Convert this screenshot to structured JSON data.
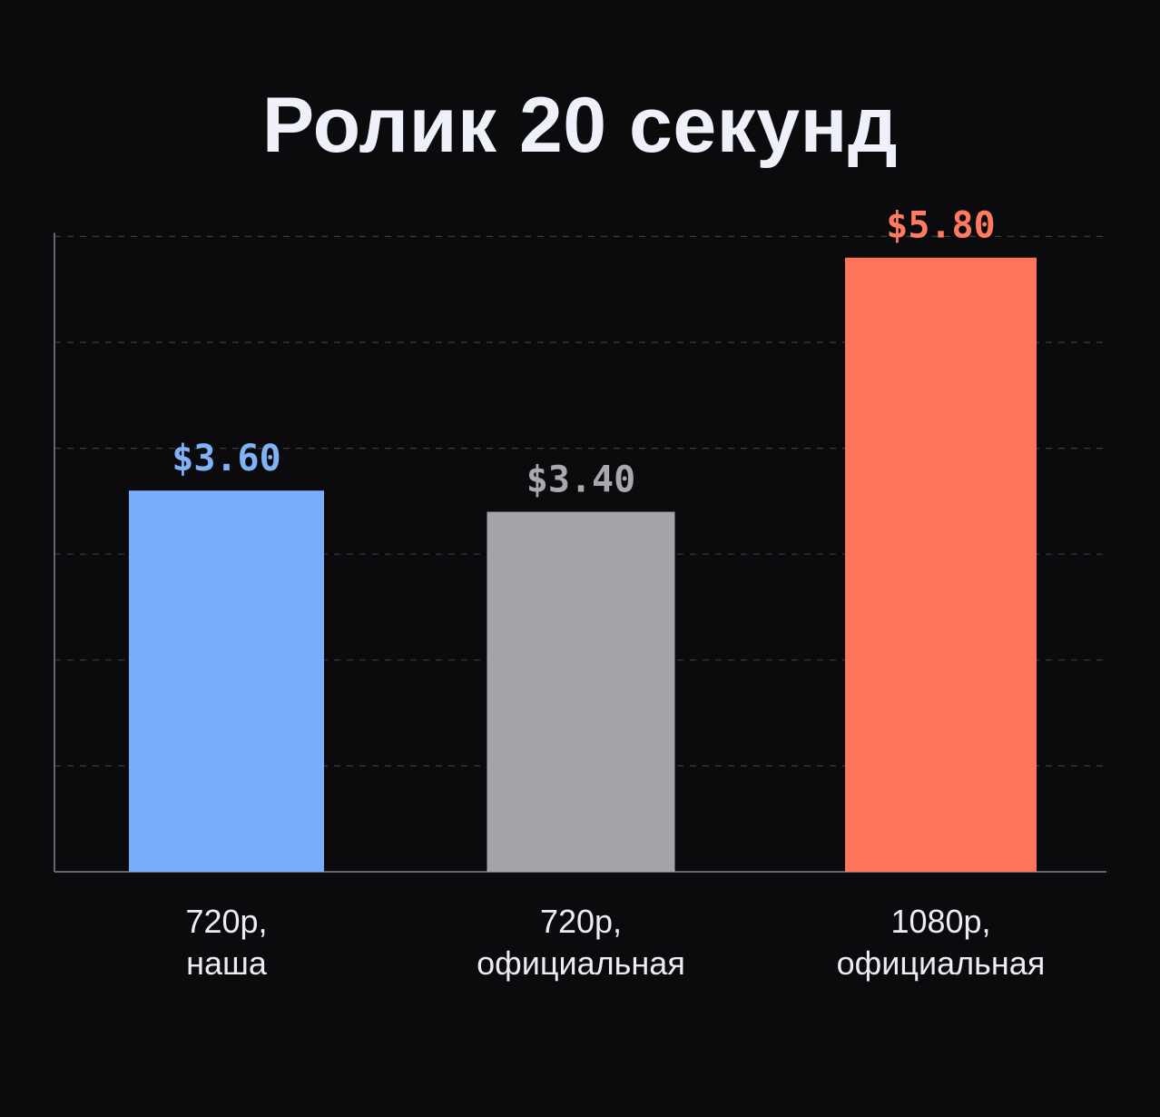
{
  "chart_data": {
    "type": "bar",
    "title": "Ролик 20 секунд",
    "categories": [
      [
        "720p,",
        "наша"
      ],
      [
        "720p,",
        "официальная"
      ],
      [
        "1080p,",
        "официальная"
      ]
    ],
    "values": [
      3.6,
      3.4,
      5.8
    ],
    "value_labels": [
      "$3.60",
      "$3.40",
      "$5.80"
    ],
    "bar_colors": [
      "#78aefa",
      "#a3a4aa",
      "#ff755b"
    ],
    "label_colors": [
      "#80b2f7",
      "#a8a9ad",
      "#ff7a5f"
    ],
    "ylim": [
      0,
      6
    ],
    "grid": true,
    "xlabel": "",
    "ylabel": ""
  },
  "colors": {
    "background": "#0b0b0d",
    "axis": "#6a7283",
    "grid": "#3a3d46",
    "title": "#eef0fa",
    "category_text": "#ebedf5"
  }
}
